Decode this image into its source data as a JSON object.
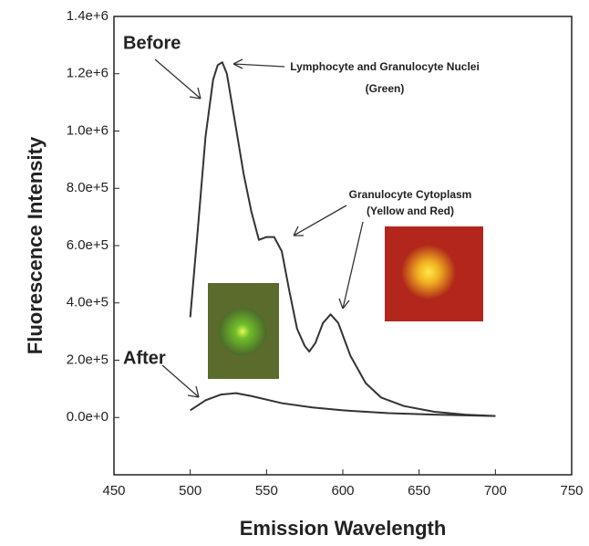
{
  "chart_data": {
    "type": "line",
    "x_label": "Emission Wavelength",
    "y_label": "Fluorescence Intensity",
    "annotations": [
      "Lymphocyte and Granulocyte Nuclei",
      "(Green)",
      "Granulocyte Cytoplasm",
      "(Yellow and Red)"
    ],
    "series": [
      {
        "name": "Before",
        "color": "#333333",
        "x": [
          500,
          505,
          510,
          515,
          518,
          521,
          524,
          530,
          535,
          540,
          545,
          550,
          555,
          560,
          565,
          570,
          575,
          578,
          582,
          587,
          592,
          597,
          605,
          615,
          625,
          640,
          660,
          680,
          700
        ],
        "values": [
          350000,
          660000,
          980000,
          1180000,
          1230000,
          1240000,
          1200000,
          1010000,
          850000,
          720000,
          620000,
          630000,
          630000,
          580000,
          440000,
          310000,
          250000,
          230000,
          260000,
          330000,
          360000,
          330000,
          215000,
          120000,
          70000,
          40000,
          20000,
          10000,
          5000
        ]
      },
      {
        "name": "After",
        "color": "#333333",
        "x": [
          500,
          510,
          520,
          530,
          540,
          560,
          580,
          600,
          630,
          660,
          700
        ],
        "values": [
          25000,
          60000,
          80000,
          85000,
          75000,
          50000,
          35000,
          25000,
          15000,
          10000,
          5000
        ]
      }
    ],
    "xlim": [
      450,
      750
    ],
    "xticks": [
      450,
      500,
      550,
      600,
      650,
      700,
      750
    ],
    "ylim": [
      -200000,
      1400000
    ],
    "yticks": [
      {
        "value": 0,
        "label": "0.0e+0"
      },
      {
        "value": 200000,
        "label": "2.0e+5"
      },
      {
        "value": 400000,
        "label": "4.0e+5"
      },
      {
        "value": 600000,
        "label": "6.0e+5"
      },
      {
        "value": 800000,
        "label": "8.0e+5"
      },
      {
        "value": 1000000,
        "label": "1.0e+6"
      },
      {
        "value": 1200000,
        "label": "1.2e+6"
      },
      {
        "value": 1400000,
        "label": "1.4e+6"
      }
    ],
    "grid": false
  }
}
